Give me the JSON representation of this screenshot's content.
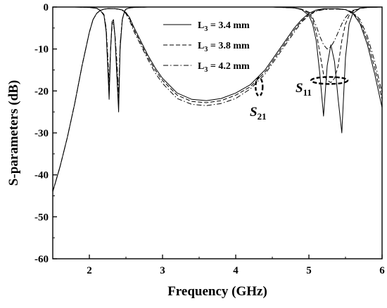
{
  "chart_data": {
    "type": "line",
    "xlabel": "Frequency (GHz)",
    "ylabel": "S-parameters (dB)",
    "xlim": [
      1.5,
      6
    ],
    "ylim": [
      -60,
      0
    ],
    "xticks": [
      2,
      3,
      4,
      5,
      6
    ],
    "yticks": [
      0,
      -10,
      -20,
      -30,
      -40,
      -50,
      -60
    ],
    "grid": false,
    "legend_position": "top-center",
    "legend": [
      {
        "label": "L",
        "sub": "3",
        "suffix": " = 3.4 mm",
        "style": "solid"
      },
      {
        "label": "L",
        "sub": "3",
        "suffix": " = 3.8 mm",
        "style": "dashed"
      },
      {
        "label": "L",
        "sub": "3",
        "suffix": " = 4.2 mm",
        "style": "dashdot"
      }
    ],
    "annotations": [
      {
        "text": "S",
        "sub": "21"
      },
      {
        "text": "S",
        "sub": "11"
      }
    ],
    "series": [
      {
        "legend_index": 0,
        "param": "S21",
        "style": "solid",
        "x": [
          1.5,
          1.6,
          1.7,
          1.8,
          1.9,
          2.0,
          2.05,
          2.1,
          2.15,
          2.2,
          2.25,
          2.28,
          2.3,
          2.35,
          2.4,
          2.45,
          2.5,
          2.55,
          2.6,
          2.7,
          2.8,
          2.9,
          3.0,
          3.2,
          3.4,
          3.6,
          3.8,
          4.0,
          4.2,
          4.4,
          4.6,
          4.7,
          4.8,
          4.9,
          5.0,
          5.1,
          5.2,
          5.3,
          5.4,
          5.5,
          5.6,
          5.7,
          5.8,
          5.9,
          6.0
        ],
        "y": [
          -44,
          -38,
          -31,
          -23,
          -14,
          -6,
          -3,
          -1.5,
          -0.8,
          -0.5,
          -0.4,
          -0.4,
          -0.4,
          -0.4,
          -0.5,
          -0.7,
          -1.3,
          -2.5,
          -4.5,
          -8,
          -11.5,
          -14.5,
          -17,
          -20.5,
          -22,
          -22.3,
          -21.8,
          -20.5,
          -18.5,
          -15,
          -10,
          -7.5,
          -5,
          -3,
          -1.5,
          -0.7,
          -0.4,
          -0.4,
          -0.4,
          -0.6,
          -1.5,
          -4,
          -9,
          -16,
          -24
        ]
      },
      {
        "legend_index": 1,
        "param": "S21",
        "style": "dashed",
        "x": [
          1.5,
          1.6,
          1.7,
          1.8,
          1.9,
          2.0,
          2.05,
          2.1,
          2.15,
          2.2,
          2.25,
          2.28,
          2.3,
          2.35,
          2.4,
          2.45,
          2.5,
          2.55,
          2.6,
          2.7,
          2.8,
          2.9,
          3.0,
          3.2,
          3.4,
          3.6,
          3.8,
          4.0,
          4.2,
          4.4,
          4.6,
          4.7,
          4.8,
          4.9,
          5.0,
          5.1,
          5.2,
          5.3,
          5.4,
          5.5,
          5.6,
          5.7,
          5.8,
          5.9,
          6.0
        ],
        "y": [
          -44,
          -38,
          -31,
          -23,
          -14,
          -6,
          -3,
          -1.5,
          -0.8,
          -0.5,
          -0.4,
          -0.4,
          -0.4,
          -0.4,
          -0.5,
          -0.7,
          -1.4,
          -2.8,
          -5,
          -8.5,
          -12,
          -15,
          -17.5,
          -21,
          -22.5,
          -22.8,
          -22.3,
          -21,
          -19,
          -15.5,
          -10.5,
          -8,
          -5.5,
          -3.3,
          -1.8,
          -0.9,
          -0.5,
          -0.5,
          -0.5,
          -0.6,
          -1.3,
          -3.5,
          -8,
          -14.5,
          -22
        ]
      },
      {
        "legend_index": 2,
        "param": "S21",
        "style": "dashdot",
        "x": [
          1.5,
          1.6,
          1.7,
          1.8,
          1.9,
          2.0,
          2.05,
          2.1,
          2.15,
          2.2,
          2.25,
          2.28,
          2.3,
          2.35,
          2.4,
          2.45,
          2.5,
          2.55,
          2.6,
          2.7,
          2.8,
          2.9,
          3.0,
          3.2,
          3.4,
          3.6,
          3.8,
          4.0,
          4.2,
          4.4,
          4.6,
          4.7,
          4.8,
          4.9,
          5.0,
          5.1,
          5.2,
          5.3,
          5.4,
          5.5,
          5.6,
          5.7,
          5.8,
          5.9,
          6.0
        ],
        "y": [
          -44,
          -38,
          -31,
          -23,
          -14,
          -6,
          -3,
          -1.5,
          -0.8,
          -0.5,
          -0.4,
          -0.4,
          -0.4,
          -0.4,
          -0.5,
          -0.8,
          -1.6,
          -3.2,
          -5.5,
          -9,
          -12.5,
          -15.7,
          -18.2,
          -21.8,
          -23.2,
          -23.5,
          -23,
          -21.8,
          -19.5,
          -16,
          -11,
          -8.5,
          -6,
          -3.6,
          -2,
          -1,
          -0.6,
          -0.5,
          -0.5,
          -0.6,
          -1.2,
          -3,
          -7,
          -13,
          -20.5
        ]
      },
      {
        "legend_index": 0,
        "param": "S11",
        "style": "solid",
        "x": [
          1.5,
          1.8,
          2.0,
          2.1,
          2.15,
          2.2,
          2.23,
          2.25,
          2.27,
          2.29,
          2.31,
          2.33,
          2.35,
          2.38,
          2.4,
          2.42,
          2.45,
          2.48,
          2.5,
          2.55,
          2.6,
          2.8,
          3.0,
          3.5,
          4.0,
          4.5,
          4.8,
          4.9,
          5.0,
          5.05,
          5.1,
          5.15,
          5.2,
          5.25,
          5.3,
          5.35,
          5.4,
          5.45,
          5.5,
          5.55,
          5.6,
          5.7,
          5.8,
          6.0
        ],
        "y": [
          0,
          0,
          -0.1,
          -0.3,
          -0.8,
          -2,
          -6,
          -14,
          -22,
          -10,
          -3.5,
          -3,
          -7,
          -18,
          -25,
          -10,
          -3,
          -1,
          -0.5,
          -0.2,
          -0.1,
          0,
          0,
          0,
          0,
          0,
          -0.2,
          -0.6,
          -2,
          -4,
          -8,
          -16,
          -26,
          -14,
          -9,
          -13,
          -22,
          -30,
          -12,
          -4,
          -1.5,
          -0.3,
          -0.1,
          0
        ]
      },
      {
        "legend_index": 1,
        "param": "S11",
        "style": "dashed",
        "x": [
          1.5,
          1.8,
          2.0,
          2.1,
          2.15,
          2.2,
          2.23,
          2.25,
          2.27,
          2.29,
          2.31,
          2.33,
          2.35,
          2.38,
          2.4,
          2.42,
          2.45,
          2.48,
          2.5,
          2.55,
          2.6,
          2.8,
          3.0,
          3.5,
          4.0,
          4.5,
          4.8,
          4.9,
          5.0,
          5.05,
          5.1,
          5.15,
          5.2,
          5.25,
          5.3,
          5.35,
          5.4,
          5.45,
          5.5,
          5.55,
          5.6,
          5.7,
          5.8,
          6.0
        ],
        "y": [
          0,
          0,
          -0.1,
          -0.3,
          -0.8,
          -2,
          -5.5,
          -13,
          -20,
          -10,
          -4,
          -3.5,
          -7,
          -16,
          -23,
          -9,
          -3,
          -1,
          -0.5,
          -0.2,
          -0.1,
          0,
          0,
          0,
          0,
          0,
          -0.2,
          -0.5,
          -1.5,
          -3,
          -6,
          -11,
          -16,
          -17.5,
          -18,
          -17,
          -14,
          -8,
          -4,
          -2,
          -1,
          -0.3,
          -0.1,
          0
        ]
      },
      {
        "legend_index": 2,
        "param": "S11",
        "style": "dashdot",
        "x": [
          1.5,
          1.8,
          2.0,
          2.1,
          2.15,
          2.2,
          2.23,
          2.25,
          2.27,
          2.29,
          2.31,
          2.33,
          2.35,
          2.38,
          2.4,
          2.42,
          2.45,
          2.48,
          2.5,
          2.55,
          2.6,
          2.8,
          3.0,
          3.5,
          4.0,
          4.5,
          4.8,
          4.9,
          5.0,
          5.05,
          5.1,
          5.15,
          5.2,
          5.25,
          5.3,
          5.35,
          5.4,
          5.45,
          5.5,
          5.55,
          5.6,
          5.7,
          5.8,
          6.0
        ],
        "y": [
          0,
          0,
          -0.1,
          -0.3,
          -0.7,
          -1.8,
          -5,
          -11,
          -18,
          -10,
          -4.5,
          -4,
          -6.5,
          -14,
          -21,
          -9,
          -3,
          -1,
          -0.5,
          -0.2,
          -0.1,
          0,
          0,
          0,
          0,
          0,
          -0.2,
          -0.5,
          -1.2,
          -2.5,
          -4.5,
          -7,
          -9,
          -10,
          -9.5,
          -8,
          -6,
          -4,
          -2.5,
          -1.5,
          -0.8,
          -0.3,
          -0.1,
          0
        ]
      }
    ]
  }
}
